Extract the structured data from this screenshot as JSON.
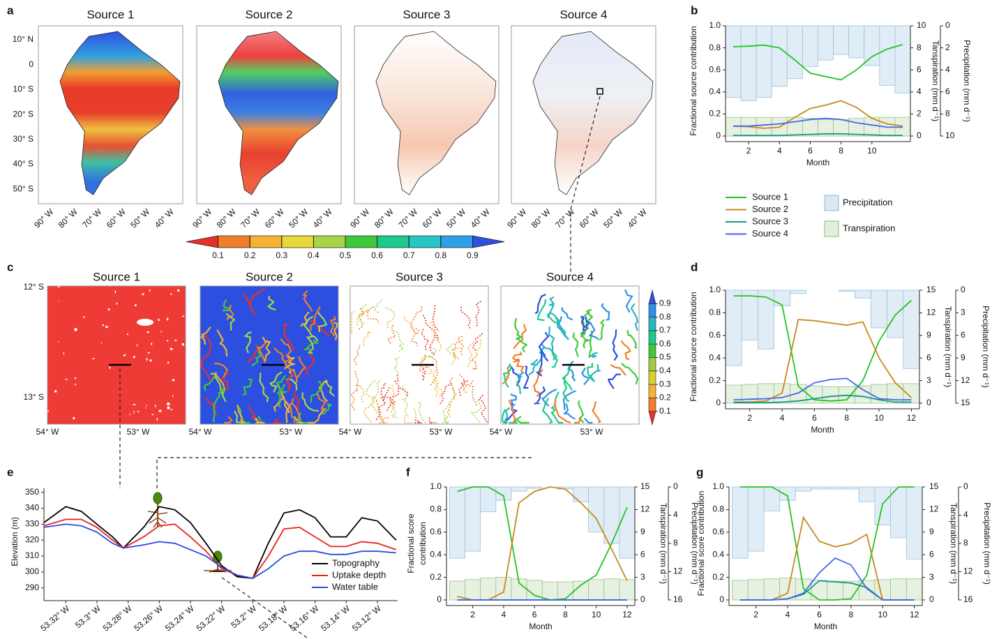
{
  "panel_labels": [
    "a",
    "b",
    "c",
    "d",
    "e",
    "f",
    "g"
  ],
  "maps_a": {
    "titles": [
      "Source 1",
      "Source 2",
      "Source 3",
      "Source 4"
    ],
    "lat_labels": [
      "10° N",
      "0",
      "10° S",
      "20° S",
      "30° S",
      "40° S",
      "50° S"
    ],
    "lon_labels": [
      "90° W",
      "80° W",
      "70° W",
      "60° W",
      "50° W",
      "40° W"
    ]
  },
  "colorbar_a": {
    "lim": [
      0,
      1
    ],
    "ticks": [
      0.1,
      0.2,
      0.3,
      0.4,
      0.5,
      0.6,
      0.7,
      0.8,
      0.9
    ],
    "colors": [
      "#e8302a",
      "#f07f2b",
      "#f5b335",
      "#e8d83a",
      "#a6d648",
      "#3fc93a",
      "#1ec98c",
      "#27c6c2",
      "#2fa0e8",
      "#2e4fe0"
    ]
  },
  "maps_c": {
    "titles": [
      "Source 1",
      "Source 2",
      "Source 3",
      "Source 4"
    ],
    "lat_labels": [
      "12° S",
      "13° S"
    ],
    "lon_labels": [
      "54° W",
      "53° W"
    ]
  },
  "colorbar_c": {
    "lim": [
      0,
      1
    ],
    "ticks": [
      0.1,
      0.2,
      0.3,
      0.4,
      0.5,
      0.6,
      0.7,
      0.8,
      0.9
    ],
    "colors": [
      "#e8302a",
      "#f07f2b",
      "#f5b335",
      "#d8d030",
      "#a6c648",
      "#3fc93a",
      "#1ec98c",
      "#27b6c2",
      "#2f90e8",
      "#2e4fe0"
    ]
  },
  "chart_data": [
    {
      "type": "line",
      "xlabel": "Month",
      "ylabel": "Fractional source contribution",
      "y2label": "Tanspiration (mm d⁻¹)",
      "y3label": "Precipitation (mm d⁻¹)",
      "x": [
        1,
        2,
        3,
        4,
        5,
        6,
        7,
        8,
        9,
        10,
        11,
        12
      ],
      "xlim": [
        0.5,
        12.5
      ],
      "xticks": [
        2,
        4,
        6,
        8,
        10
      ],
      "ylim": [
        0,
        1
      ],
      "yticks": [
        0,
        0.2,
        0.4,
        0.6,
        0.8,
        {
          "value": 1,
          "label": "1.0"
        }
      ],
      "y2lim": [
        0,
        10
      ],
      "y2ticks": [
        0,
        2,
        4,
        6,
        8,
        10
      ],
      "y3lim": [
        10,
        0
      ],
      "y3ticks": [
        0,
        2,
        4,
        6,
        8,
        10
      ],
      "legend": "below",
      "series": [
        {
          "name": "Source 1",
          "color": "#22c422",
          "values": [
            0.81,
            0.815,
            0.825,
            0.8,
            0.69,
            0.57,
            0.54,
            0.51,
            0.6,
            0.72,
            0.79,
            0.83
          ]
        },
        {
          "name": "Source 2",
          "color": "#c8881a",
          "values": [
            0.09,
            0.085,
            0.07,
            0.08,
            0.17,
            0.25,
            0.28,
            0.32,
            0.26,
            0.16,
            0.11,
            0.09
          ]
        },
        {
          "name": "Source 3",
          "color": "#119988",
          "values": [
            0.005,
            0.005,
            0.005,
            0.005,
            0.01,
            0.015,
            0.02,
            0.02,
            0.015,
            0.01,
            0.005,
            0.005
          ]
        },
        {
          "name": "Source 4",
          "color": "#4466ee",
          "values": [
            0.09,
            0.09,
            0.1,
            0.11,
            0.13,
            0.15,
            0.16,
            0.15,
            0.12,
            0.1,
            0.08,
            0.08
          ]
        }
      ],
      "bars": [
        {
          "name": "Precipitation",
          "axis": "y3",
          "color": "#dae9f4",
          "edge": "#9cc3de",
          "values": [
            6.5,
            6.8,
            6.5,
            5.5,
            4.8,
            3.7,
            3.1,
            2.6,
            2.9,
            3.6,
            5.4,
            6.1
          ]
        },
        {
          "name": "Transpiration",
          "axis": "y2",
          "color": "#e3efdc",
          "edge": "#98c48a",
          "values": [
            1.7,
            1.7,
            1.7,
            1.7,
            1.7,
            1.6,
            1.5,
            1.5,
            1.6,
            1.7,
            1.7,
            1.7
          ]
        }
      ]
    },
    {
      "type": "line",
      "xlabel": "Month",
      "ylabel": "Fractional source contribution",
      "y2label": "Tanspiration (mm d⁻¹)",
      "y3label": "Precipitation (mm d⁻¹)",
      "x": [
        1,
        2,
        3,
        4,
        5,
        6,
        7,
        8,
        9,
        10,
        11,
        12
      ],
      "xlim": [
        0.5,
        12.5
      ],
      "xticks": [
        2,
        4,
        6,
        8,
        10,
        12
      ],
      "ylim": [
        0,
        1
      ],
      "yticks": [
        0,
        0.2,
        0.4,
        0.6,
        0.8,
        {
          "value": 1,
          "label": "1.0"
        }
      ],
      "y2lim": [
        0,
        15
      ],
      "y2ticks": [
        0,
        3,
        6,
        9,
        12,
        15
      ],
      "y3lim": [
        15,
        0
      ],
      "y3ticks": [
        0,
        3,
        6,
        9,
        12,
        15
      ],
      "series": [
        {
          "color": "#22c422",
          "values": [
            0.95,
            0.95,
            0.94,
            0.87,
            0.15,
            0.03,
            0.02,
            0.03,
            0.2,
            0.55,
            0.78,
            0.91
          ]
        },
        {
          "color": "#c8881a",
          "values": [
            0.01,
            0.01,
            0.02,
            0.09,
            0.74,
            0.73,
            0.71,
            0.69,
            0.72,
            0.4,
            0.18,
            0.05
          ]
        },
        {
          "color": "#119988",
          "values": [
            0.005,
            0.005,
            0.005,
            0.01,
            0.02,
            0.04,
            0.06,
            0.07,
            0.06,
            0.03,
            0.01,
            0.01
          ]
        },
        {
          "color": "#4466ee",
          "values": [
            0.03,
            0.035,
            0.04,
            0.05,
            0.09,
            0.18,
            0.21,
            0.22,
            0.12,
            0.04,
            0.03,
            0.03
          ]
        }
      ],
      "bars": [
        {
          "axis": "y3",
          "color": "#dae9f4",
          "edge": "#9cc3de",
          "values": [
            10,
            6.6,
            7.8,
            2.1,
            0.45,
            0,
            0,
            0.15,
            1.05,
            5,
            6.3,
            10.4
          ]
        },
        {
          "axis": "y2",
          "color": "#e3efdc",
          "edge": "#98c48a",
          "values": [
            2.4,
            2.5,
            2.6,
            2.6,
            2.5,
            2.3,
            2.2,
            2.2,
            2.3,
            2.5,
            2.6,
            2.6
          ]
        }
      ]
    },
    {
      "type": "line",
      "ylabel": "Elevation (m)",
      "x": [
        -53.334,
        -53.32,
        -53.31,
        -53.3,
        -53.29,
        -53.283,
        -53.27,
        -53.26,
        -53.25,
        -53.24,
        -53.23,
        -53.22,
        -53.21,
        -53.2,
        -53.19,
        -53.18,
        -53.17,
        -53.16,
        -53.15,
        -53.14,
        -53.13,
        -53.12,
        -53.108
      ],
      "xlim": [
        -53.334,
        -53.107
      ],
      "xticks": [
        {
          "value": -53.32,
          "label": "53.32° W"
        },
        {
          "value": -53.3,
          "label": "53.3° W"
        },
        {
          "value": -53.28,
          "label": "53.28° W"
        },
        {
          "value": -53.26,
          "label": "53.26° W"
        },
        {
          "value": -53.24,
          "label": "53.24° W"
        },
        {
          "value": -53.22,
          "label": "53.22° W"
        },
        {
          "value": -53.2,
          "label": "53.2° W"
        },
        {
          "value": -53.18,
          "label": "53.18° W"
        },
        {
          "value": -53.16,
          "label": "53.16° W"
        },
        {
          "value": -53.14,
          "label": "53.14° W"
        },
        {
          "value": -53.12,
          "label": "53.12° W"
        }
      ],
      "ylim": [
        285.5,
        352.5
      ],
      "yticks": [
        290,
        300,
        310,
        320,
        330,
        340,
        350
      ],
      "legend": "lower right",
      "series": [
        {
          "name": "Topography",
          "color": "#000000",
          "values": [
            331,
            341,
            338,
            330,
            322,
            315,
            328,
            341,
            339,
            331,
            318,
            304,
            297,
            296,
            318,
            337,
            339,
            334,
            322,
            322,
            334,
            332,
            320
          ]
        },
        {
          "name": "Uptake depth",
          "color": "#e8201c",
          "values": [
            329,
            333,
            333,
            328,
            320,
            315,
            322,
            329,
            330,
            322,
            313,
            302,
            298,
            296,
            310,
            327,
            328,
            322,
            316,
            316,
            319,
            318,
            314
          ]
        },
        {
          "name": "Water table",
          "color": "#2a4ae0",
          "values": [
            328,
            330,
            329,
            325,
            318,
            315,
            317,
            319,
            318,
            314,
            310,
            303,
            298,
            296,
            302,
            310,
            313,
            313,
            311,
            311,
            313,
            313,
            312
          ]
        }
      ]
    },
    {
      "type": "line",
      "xlabel": "Month",
      "ylabel": [
        "Fractional score",
        "contribution"
      ],
      "y2label": "Tanspiration (mm d⁻¹)",
      "y3label": "Precipitation (mm d⁻¹)",
      "x": [
        1,
        2,
        3,
        4,
        5,
        6,
        7,
        8,
        9,
        10,
        11,
        12
      ],
      "xlim": [
        0.3,
        12.5
      ],
      "xticks": [
        2,
        4,
        6,
        8,
        10,
        12
      ],
      "ylim": [
        0,
        1
      ],
      "yticks": [
        0,
        0.2,
        0.4,
        0.6,
        0.8,
        {
          "value": 1,
          "label": "1.0"
        }
      ],
      "y2lim": [
        0,
        15
      ],
      "y2ticks": [
        0,
        3,
        6,
        9,
        12,
        15
      ],
      "y3lim": [
        16,
        0
      ],
      "y3ticks": [
        0,
        4,
        8,
        12,
        16
      ],
      "series": [
        {
          "color": "#22c422",
          "values": [
            0.96,
            1,
            1,
            0.92,
            0.15,
            0.04,
            0,
            0.01,
            0.13,
            0.22,
            0.5,
            0.82
          ]
        },
        {
          "color": "#c8881a",
          "values": [
            0.03,
            0,
            0,
            0.07,
            0.86,
            0.96,
            1,
            0.98,
            0.86,
            0.72,
            0.45,
            0.17
          ]
        },
        {
          "color": "#119988",
          "values": [
            0,
            0,
            0,
            0,
            0,
            0,
            0,
            0,
            0,
            0,
            0,
            0
          ]
        },
        {
          "color": "#4466ee",
          "values": [
            0,
            0,
            0,
            0,
            0,
            0,
            0,
            0,
            0,
            0,
            0,
            0
          ]
        }
      ],
      "bars": [
        {
          "axis": "y3",
          "color": "#dae9f4",
          "edge": "#9cc3de",
          "values": [
            10.1,
            9.1,
            3.5,
            1.9,
            0.6,
            0.2,
            0,
            0.3,
            2.1,
            6.4,
            8,
            10.1
          ]
        },
        {
          "axis": "y2",
          "color": "#e3efdc",
          "edge": "#98c48a",
          "values": [
            2.5,
            2.7,
            2.9,
            3,
            2.8,
            2.6,
            2.4,
            2.4,
            2.5,
            2.7,
            2.8,
            2.7
          ]
        }
      ]
    },
    {
      "type": "line",
      "xlabel": "Month",
      "ylabel": "Fractional score contribution",
      "y2label": "Tanspiration (mm d⁻¹)",
      "y3label": "Precipitation (mm d⁻¹)",
      "x": [
        1,
        2,
        3,
        4,
        5,
        6,
        7,
        8,
        9,
        10,
        11,
        12
      ],
      "xlim": [
        0.3,
        12.5
      ],
      "xticks": [
        2,
        4,
        6,
        8,
        10,
        12
      ],
      "ylim": [
        0,
        1
      ],
      "yticks": [
        0,
        0.2,
        0.4,
        0.6,
        0.8,
        {
          "value": 1,
          "label": "1.0"
        }
      ],
      "y2lim": [
        0,
        15
      ],
      "y2ticks": [
        0,
        3,
        6,
        9,
        12,
        15
      ],
      "y3lim": [
        16,
        0
      ],
      "y3ticks": [
        0,
        4,
        8,
        12,
        16
      ],
      "series": [
        {
          "color": "#22c422",
          "values": [
            1,
            1,
            1,
            0.92,
            0.1,
            0,
            0,
            0.01,
            0.22,
            0.85,
            1,
            1
          ]
        },
        {
          "color": "#c8881a",
          "values": [
            0,
            0,
            0,
            0.06,
            0.73,
            0.52,
            0.47,
            0.5,
            0.58,
            0,
            0,
            0
          ]
        },
        {
          "color": "#119988",
          "values": [
            0,
            0,
            0,
            0.01,
            0.05,
            0.17,
            0.16,
            0.15,
            0.11,
            0,
            0,
            0
          ]
        },
        {
          "color": "#4466ee",
          "values": [
            0,
            0,
            0,
            0.01,
            0.06,
            0.24,
            0.37,
            0.31,
            0.1,
            0,
            0,
            0
          ]
        }
      ],
      "bars": [
        {
          "axis": "y3",
          "color": "#dae9f4",
          "edge": "#9cc3de",
          "values": [
            10.1,
            9.1,
            3.4,
            1.9,
            0.6,
            0.3,
            0.3,
            0.3,
            2.1,
            5.4,
            7.2,
            10.2
          ]
        },
        {
          "axis": "y2",
          "color": "#e3efdc",
          "edge": "#98c48a",
          "values": [
            2.6,
            2.7,
            2.8,
            2.9,
            2.8,
            2.6,
            2.5,
            2.5,
            2.6,
            2.7,
            2.8,
            2.8
          ]
        }
      ]
    }
  ]
}
